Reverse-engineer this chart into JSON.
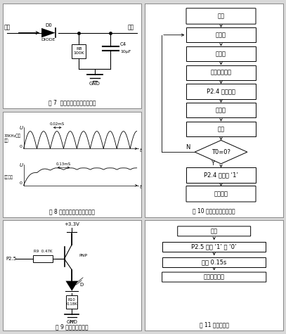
{
  "bg_color": "#e8e8e8",
  "panel_bg": "#ffffff",
  "border_color": "#777777",
  "text_color": "#111111",
  "panels": {
    "top_left": {
      "title": "图 7  单相半波整流滤波电路图"
    },
    "top_right": {
      "title": "图 10 方波输出程序流程图"
    },
    "mid_left": {
      "title": "图 8 整流滤波实际输出波形图"
    },
    "bot_left": {
      "title": "图 9 报警电路原理图"
    },
    "bot_right": {
      "title": "图 11 报警流程图"
    }
  },
  "flowchart10_labels": [
    "开始",
    "初始化",
    "关中断",
    "定时器送初値",
    "P2.4 输出清零",
    "开中断",
    "等待",
    "T0=0?",
    "P2.4 输出置 ‘1’",
    "输出方波"
  ],
  "flowchart11_labels": [
    "开始",
    "P2.5 输出 ‘1’ 或 ‘0’",
    "延时 0.15s",
    "二极管灯或亮"
  ],
  "waveform": {
    "upper_label": "33KHz整流\n输出",
    "lower_label": "滤波输出",
    "upper_ann": "0.02mS",
    "lower_ann": "0.13mS"
  },
  "circuit7": {
    "input_label": "输入",
    "output_label": "输出",
    "diode_label": "DIODE",
    "d0_label": "D0",
    "rb_label": "RB\n100K",
    "c4_label": "C4\n10μF",
    "gnd_label": "GND"
  },
  "circuit9": {
    "vcc_label": "+3.3V",
    "p25_label": "P2.5",
    "r9_label": "R9 0.47K",
    "pnp_label": "PNP",
    "d_label": "D",
    "r10_label": "R10\n0.18K",
    "gnd_label": "GND"
  }
}
